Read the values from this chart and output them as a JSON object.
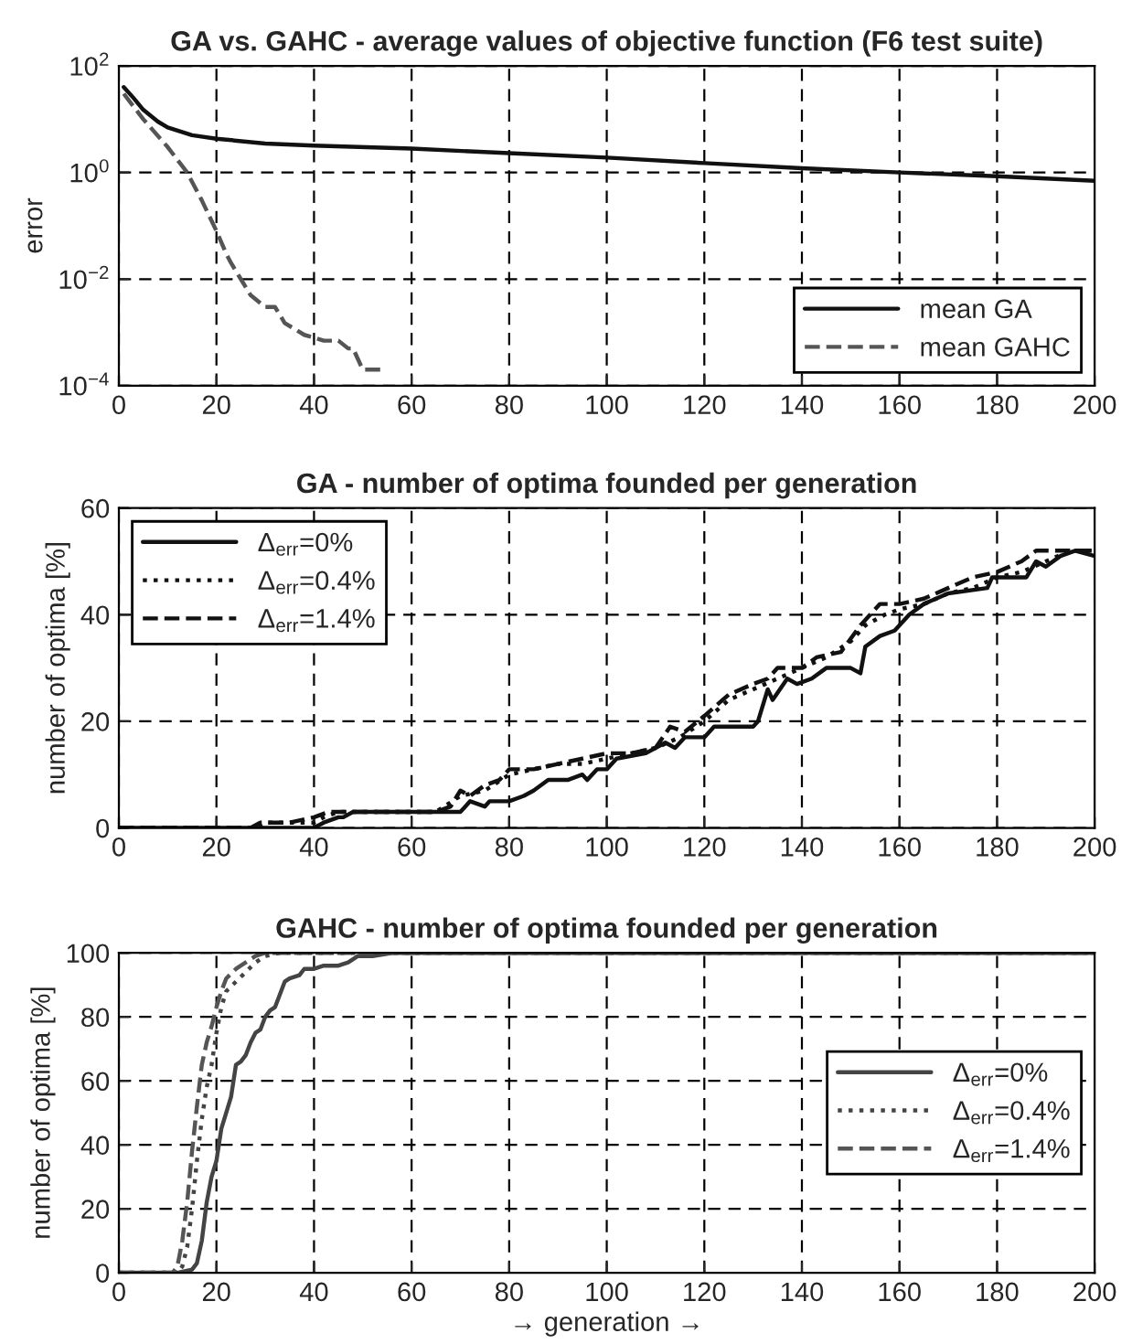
{
  "chart_data": [
    {
      "type": "line",
      "title": "GA vs. GAHC - average values of objective function (F6 test suite)",
      "ylabel": "error",
      "log": "y",
      "xlim": [
        0,
        200
      ],
      "xticks": [
        0,
        20,
        40,
        60,
        80,
        100,
        120,
        140,
        160,
        180,
        200
      ],
      "ylim": [
        0.0001,
        100
      ],
      "yticks": [
        {
          "value": 0.0001,
          "label": "10$^{−4}$"
        },
        {
          "value": 0.01,
          "label": "10$^{−2}$"
        },
        {
          "value": 1,
          "label": "10$^{0}$"
        },
        {
          "value": 100,
          "label": "10$^{2}$"
        }
      ],
      "grid": true,
      "legend": "lower right",
      "series": [
        {
          "name": "mean GA",
          "color": "#111111",
          "line_style": "solid",
          "x": [
            1,
            3,
            5,
            8,
            10,
            15,
            20,
            30,
            40,
            60,
            80,
            100,
            120,
            140,
            160,
            180,
            200
          ],
          "values": [
            40,
            25,
            15,
            9,
            7,
            5,
            4.3,
            3.5,
            3.2,
            2.8,
            2.3,
            1.9,
            1.5,
            1.2,
            1.0,
            0.85,
            0.7
          ]
        },
        {
          "name": "mean GAHC",
          "color": "#555555",
          "line_style": "dashed",
          "x": [
            1,
            5,
            10,
            14,
            17,
            20,
            22,
            23,
            25,
            27,
            30,
            32,
            34,
            38,
            40,
            42,
            45,
            47,
            48,
            50,
            54
          ],
          "values": [
            30,
            10,
            3,
            1,
            0.3,
            0.08,
            0.03,
            0.02,
            0.01,
            0.005,
            0.003,
            0.003,
            0.0015,
            0.0009,
            0.0008,
            0.0007,
            0.0007,
            0.0005,
            0.0005,
            0.0002,
            0.0002
          ]
        }
      ]
    },
    {
      "type": "line",
      "title": "GA - number of optima founded per generation",
      "ylabel": "number of optima [%]",
      "xlim": [
        0,
        200
      ],
      "xticks": [
        0,
        20,
        40,
        60,
        80,
        100,
        120,
        140,
        160,
        180,
        200
      ],
      "ylim": [
        0,
        60
      ],
      "yticks": [
        0,
        20,
        40,
        60
      ],
      "grid": true,
      "legend": "upper left",
      "series": [
        {
          "name": "Δ$_{err}$=0%",
          "color": "#111111",
          "line_style": "solid",
          "x": [
            0,
            40,
            42,
            45,
            46,
            48,
            70,
            72,
            75,
            76,
            80,
            83,
            85,
            88,
            92,
            95,
            96,
            98,
            100,
            102,
            108,
            112,
            114,
            116,
            120,
            122,
            130,
            131,
            133,
            134,
            137,
            139,
            142,
            145,
            150,
            152,
            153,
            156,
            159,
            162,
            165,
            170,
            178,
            179,
            186,
            188,
            190,
            193,
            196,
            200
          ],
          "values": [
            0,
            0,
            1,
            2,
            2,
            3,
            3,
            5,
            4,
            5,
            5,
            6,
            7,
            9,
            9,
            10,
            9,
            11,
            11,
            13,
            14,
            16,
            15,
            17,
            17,
            19,
            19,
            20,
            26,
            24,
            28,
            27,
            28,
            30,
            30,
            29,
            34,
            36,
            37,
            40,
            42,
            44,
            45,
            47,
            47,
            50,
            49,
            51,
            52,
            51
          ]
        },
        {
          "name": "Δ$_{err}$=0.4%",
          "color": "#111111",
          "line_style": "dotted",
          "x": [
            0,
            28,
            30,
            40,
            42,
            45,
            65,
            70,
            75,
            80,
            85,
            90,
            95,
            100,
            105,
            110,
            115,
            120,
            125,
            130,
            135,
            140,
            145,
            150,
            153,
            157,
            160,
            165,
            170,
            175,
            180,
            185,
            190,
            195,
            200
          ],
          "values": [
            0,
            0,
            1,
            1,
            2,
            3,
            3,
            6,
            7,
            10,
            11,
            12,
            12,
            13,
            14,
            15,
            17,
            20,
            24,
            26,
            28,
            30,
            32,
            35,
            38,
            40,
            41,
            42,
            44,
            45,
            47,
            48,
            50,
            52,
            52
          ]
        },
        {
          "name": "Δ$_{err}$=1.4%",
          "color": "#111111",
          "line_style": "dashed",
          "x": [
            0,
            27,
            29,
            35,
            40,
            43,
            65,
            68,
            70,
            72,
            75,
            78,
            80,
            85,
            90,
            95,
            100,
            105,
            110,
            113,
            116,
            120,
            125,
            130,
            133,
            135,
            140,
            143,
            148,
            152,
            156,
            160,
            165,
            170,
            175,
            180,
            185,
            188,
            200
          ],
          "values": [
            0,
            0,
            1,
            1,
            2,
            3,
            3,
            4,
            7,
            6,
            8,
            9,
            11,
            11,
            12,
            13,
            14,
            14,
            15,
            19,
            18,
            21,
            25,
            27,
            28,
            30,
            30,
            32,
            33,
            38,
            42,
            42,
            43,
            45,
            47,
            48,
            50,
            52,
            52
          ]
        }
      ]
    },
    {
      "type": "line",
      "title": "GAHC - number of optima founded per generation",
      "xlabel": "→ generation →",
      "ylabel": "number of optima [%]",
      "xlim": [
        0,
        200
      ],
      "xticks": [
        0,
        20,
        40,
        60,
        80,
        100,
        120,
        140,
        160,
        180,
        200
      ],
      "ylim": [
        0,
        100
      ],
      "yticks": [
        0,
        20,
        40,
        60,
        80,
        100
      ],
      "grid": true,
      "legend": "center right",
      "series": [
        {
          "name": "Δ$_{err}$=0%",
          "color": "#444444",
          "line_style": "solid",
          "x": [
            0,
            12,
            15,
            16,
            17,
            18,
            19,
            20,
            21,
            22,
            23,
            24,
            25,
            26,
            27,
            28,
            29,
            30,
            31,
            32,
            33,
            34,
            35,
            37,
            38,
            40,
            42,
            45,
            47,
            49,
            52,
            56,
            200
          ],
          "values": [
            0,
            0,
            1,
            3,
            10,
            22,
            30,
            35,
            45,
            50,
            55,
            65,
            66,
            68,
            72,
            75,
            76,
            80,
            82,
            83,
            87,
            91,
            92,
            93,
            95,
            95,
            96,
            96,
            97,
            99,
            99,
            100,
            100
          ]
        },
        {
          "name": "Δ$_{err}$=0.4%",
          "color": "#444444",
          "line_style": "dotted",
          "x": [
            0,
            12,
            13,
            14,
            15,
            16,
            17,
            18,
            19,
            20,
            21,
            22,
            24,
            26,
            28,
            30,
            33,
            200
          ],
          "values": [
            0,
            0,
            2,
            8,
            20,
            35,
            48,
            58,
            65,
            75,
            83,
            88,
            91,
            94,
            97,
            99,
            100,
            100
          ]
        },
        {
          "name": "Δ$_{err}$=1.4%",
          "color": "#555555",
          "line_style": "dashed",
          "x": [
            0,
            11,
            12,
            13,
            14,
            15,
            16,
            17,
            18,
            19,
            20,
            21,
            22,
            24,
            26,
            28,
            30,
            200
          ],
          "values": [
            0,
            0,
            2,
            10,
            22,
            38,
            52,
            65,
            72,
            77,
            83,
            88,
            92,
            95,
            97,
            99,
            100,
            100
          ]
        }
      ]
    }
  ]
}
